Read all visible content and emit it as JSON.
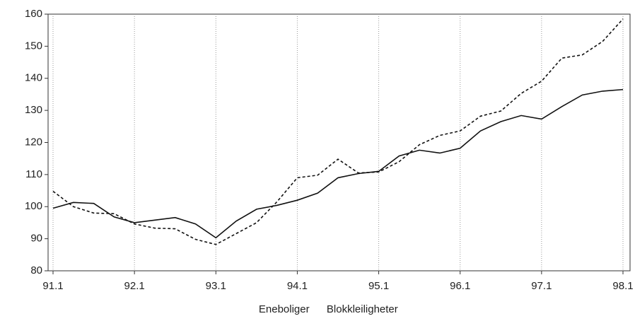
{
  "chart_data": {
    "type": "line",
    "categories": [
      "91.1",
      null,
      null,
      null,
      "92.1",
      null,
      null,
      null,
      "93.1",
      null,
      null,
      null,
      "94.1",
      null,
      null,
      null,
      "95.1",
      null,
      null,
      null,
      "96.1",
      null,
      null,
      null,
      "97.1",
      null,
      null,
      null,
      "98.1"
    ],
    "series": [
      {
        "name": "Eneboliger",
        "color": "#111111",
        "dash": "none",
        "values": [
          99.5,
          101.3,
          101,
          96.8,
          95,
          95.8,
          96.6,
          94.6,
          90.3,
          95.5,
          99.2,
          100.4,
          102,
          104.2,
          109,
          110.3,
          111,
          115.8,
          117.6,
          116.7,
          118.2,
          123.6,
          126.5,
          128.4,
          127.3,
          131.2,
          134.8,
          136,
          136.5
        ]
      },
      {
        "name": "Blokkleiligheter",
        "color": "#111111",
        "dash": "4 3",
        "values": [
          104.8,
          100,
          98,
          97.8,
          94.6,
          93.3,
          93.1,
          89.8,
          88.2,
          91.6,
          95,
          101.5,
          109,
          109.8,
          114.8,
          110.5,
          110.8,
          114,
          119.3,
          122.2,
          123.6,
          128.2,
          129.8,
          135.3,
          139.1,
          146.3,
          147.3,
          151.5,
          158.5
        ]
      }
    ],
    "ylim": [
      80,
      160
    ],
    "yticks": [
      80,
      90,
      100,
      110,
      120,
      130,
      140,
      150,
      160
    ],
    "grid": "x",
    "legend": "bottom"
  }
}
